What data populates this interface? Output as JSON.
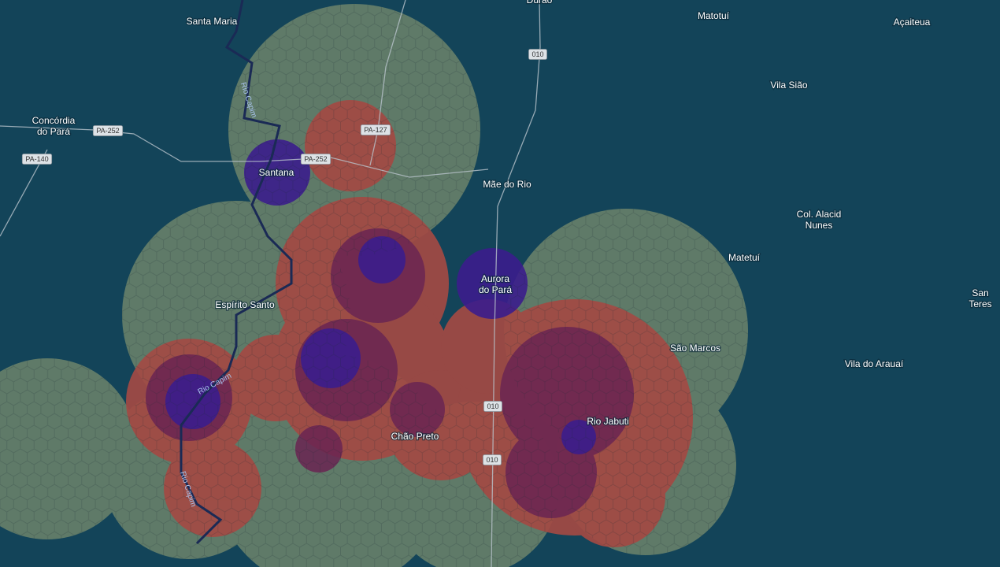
{
  "places": [
    {
      "lines": [
        "Durão"
      ]
    },
    {
      "lines": [
        "Santa Maria"
      ]
    },
    {
      "lines": [
        "Matotuí"
      ]
    },
    {
      "lines": [
        "Açaiteua"
      ]
    },
    {
      "lines": [
        "Vila Sião"
      ]
    },
    {
      "lines": [
        "Concórdia",
        "do Pará"
      ]
    },
    {
      "lines": [
        "Santana"
      ]
    },
    {
      "lines": [
        "Mãe do Rio"
      ]
    },
    {
      "lines": [
        "Col. Alacid",
        "Nunes"
      ]
    },
    {
      "lines": [
        "Matetuí"
      ]
    },
    {
      "lines": [
        "Aurora",
        "do Pará"
      ]
    },
    {
      "lines": [
        "Espírito Santo"
      ]
    },
    {
      "lines": [
        "São Marcos"
      ]
    },
    {
      "lines": [
        "Vila do Arauaí"
      ]
    },
    {
      "lines": [
        "Rio Jabuti"
      ]
    },
    {
      "lines": [
        "Chão Preto"
      ]
    },
    {
      "lines": [
        "San",
        "Teres"
      ]
    }
  ],
  "roads": [
    "PA-252",
    "PA-140",
    "PA-127",
    "PA-252",
    "010",
    "010",
    "010"
  ],
  "rivers": [
    "Rio Capim",
    "Rio Capim",
    "Rio Capim"
  ]
}
